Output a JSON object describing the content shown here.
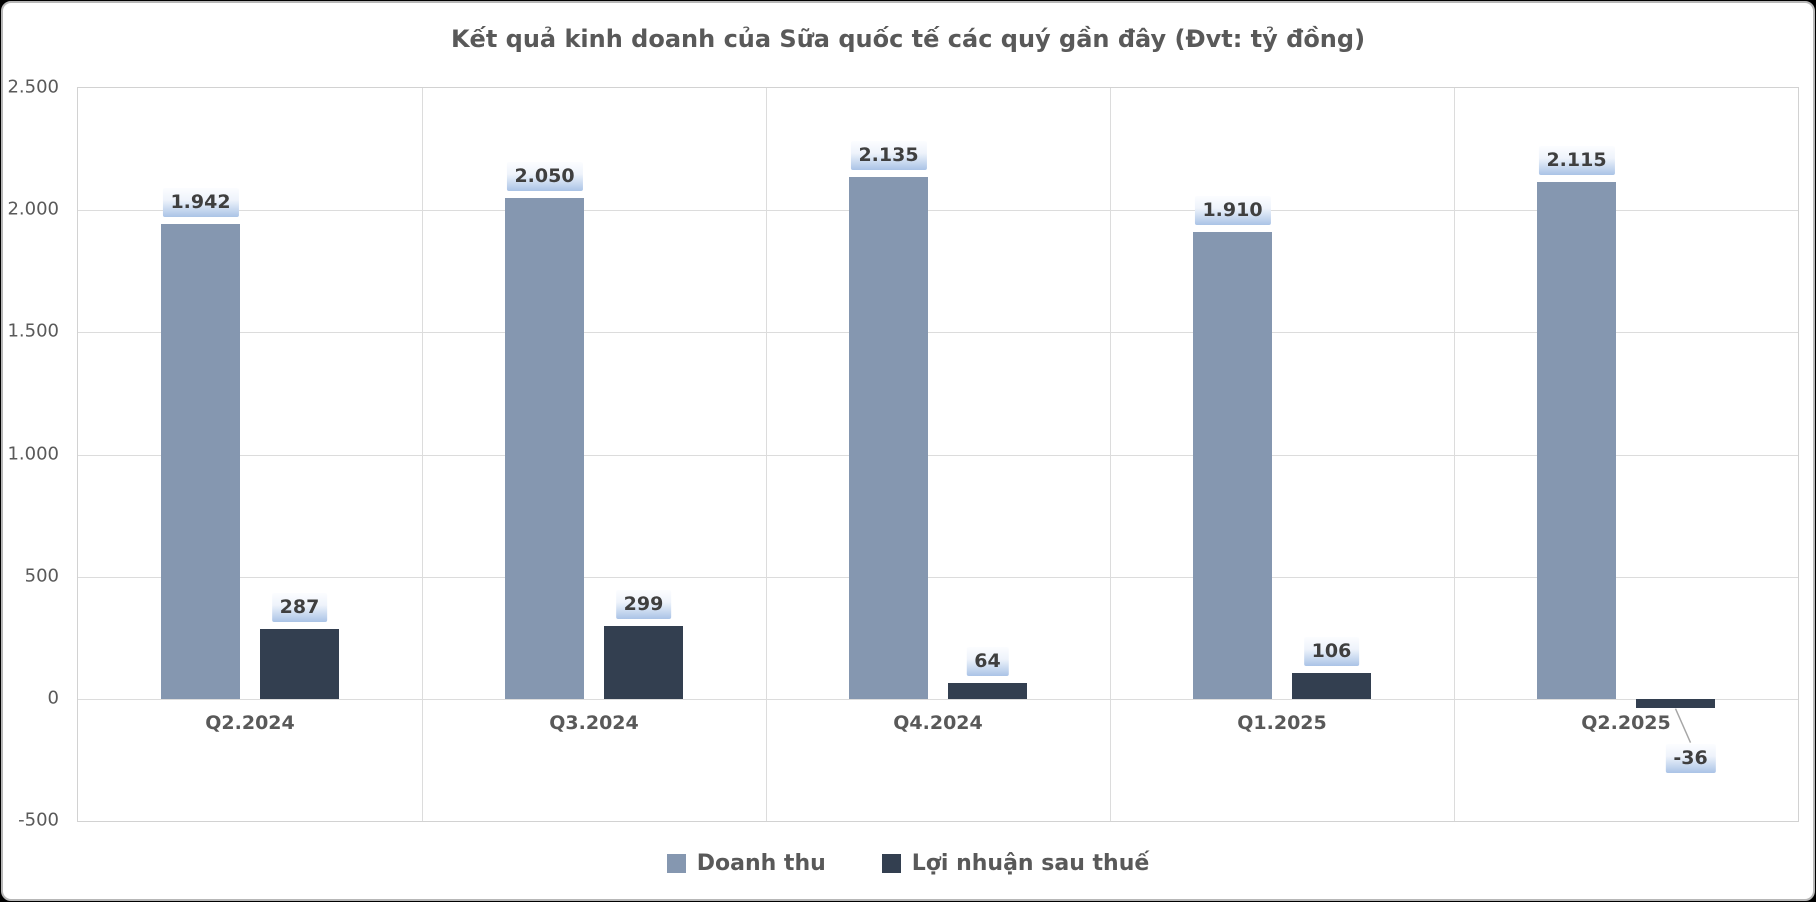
{
  "chart_data": {
    "type": "bar",
    "title": "Kết quả kinh doanh của Sữa quốc tế các quý gần đây (Đvt: tỷ đồng)",
    "unit_note": "Đvt: tỷ đồng",
    "categories": [
      "Q2.2024",
      "Q3.2024",
      "Q4.2024",
      "Q1.2025",
      "Q2.2025"
    ],
    "series": [
      {
        "name": "Doanh thu",
        "color": "#8597B0",
        "values": [
          1942,
          2050,
          2135,
          1910,
          2115
        ],
        "labels": [
          "1.942",
          "2.050",
          "2.135",
          "1.910",
          "2.115"
        ]
      },
      {
        "name": "Lợi nhuận sau thuế",
        "color": "#333F50",
        "values": [
          287,
          299,
          64,
          106,
          -36
        ],
        "labels": [
          "287",
          "299",
          "64",
          "106",
          "-36"
        ]
      }
    ],
    "ylim": [
      -500,
      2500
    ],
    "ytick_interval": 500,
    "yticks": [
      {
        "label": "2.500",
        "value": 2500
      },
      {
        "label": "2.000",
        "value": 2000
      },
      {
        "label": "1.500",
        "value": 1500
      },
      {
        "label": "1.000",
        "value": 1000
      },
      {
        "label": "500",
        "value": 500
      },
      {
        "label": "0",
        "value": 0
      },
      {
        "label": "-500",
        "value": -500
      }
    ],
    "grid": true,
    "legend_position": "bottom",
    "colors": {
      "grid": "#dcdcdc",
      "text": "#595959",
      "data_label_text": "#3f3f3f",
      "data_label_bg_top": "#fcfdff",
      "data_label_bg_bottom": "#aac3e6",
      "leader_line": "#a6a6a6",
      "background": "#ffffff"
    }
  }
}
